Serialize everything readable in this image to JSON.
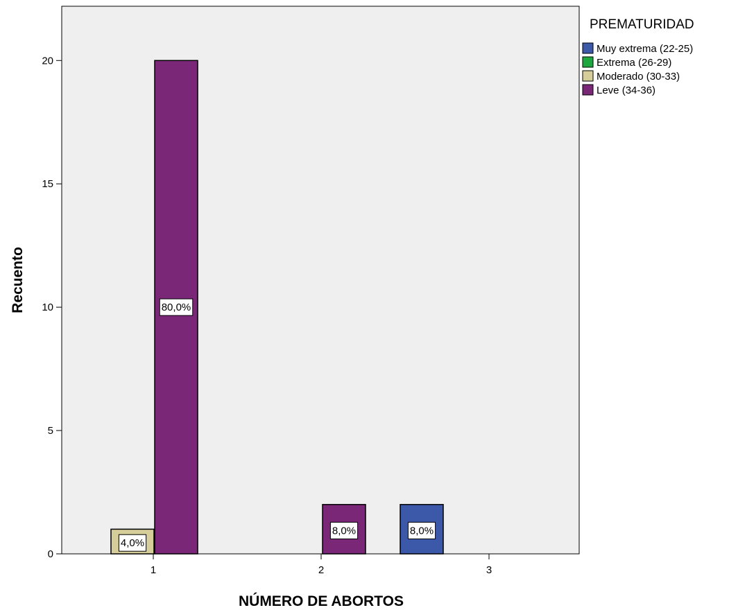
{
  "chart_data": {
    "type": "bar",
    "title": "",
    "xlabel": "NÚMERO DE ABORTOS",
    "ylabel": "Recuento",
    "categories": [
      "1",
      "2",
      "3"
    ],
    "ylim": [
      0,
      22.2
    ],
    "yticks": [
      0,
      5,
      10,
      15,
      20
    ],
    "grid": false,
    "legend": {
      "title": "PREMATURIDAD",
      "position": "right"
    },
    "series": [
      {
        "name": "Muy extrema (22-25)",
        "color": "#3c58a8",
        "values": [
          0,
          0,
          2
        ],
        "labels": [
          "",
          "",
          "8,0%"
        ]
      },
      {
        "name": "Extrema (26-29)",
        "color": "#1fa73f",
        "values": [
          0,
          0,
          0
        ],
        "labels": [
          "",
          "",
          ""
        ]
      },
      {
        "name": "Moderado (30-33)",
        "color": "#d5cd9a",
        "values": [
          1,
          0,
          0
        ],
        "labels": [
          "4,0%",
          "",
          ""
        ]
      },
      {
        "name": "Leve (34-36)",
        "color": "#7a2778",
        "values": [
          20,
          2,
          0
        ],
        "labels": [
          "80,0%",
          "8,0%",
          ""
        ]
      }
    ],
    "colors": {
      "plot_background": "#efefef",
      "axis": "#000000"
    }
  }
}
